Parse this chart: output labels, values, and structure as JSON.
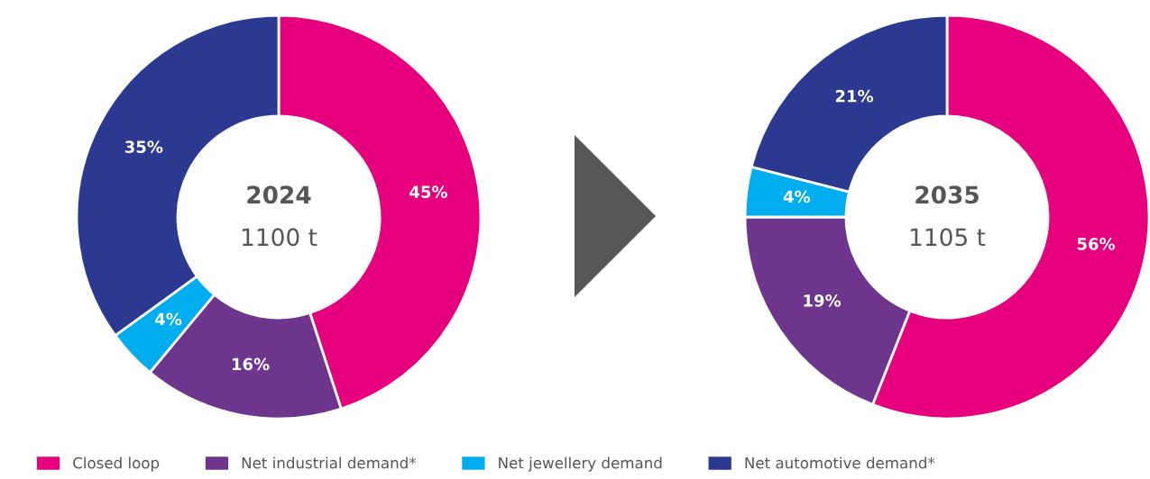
{
  "chart_data": [
    {
      "type": "donut",
      "title": "2024",
      "subtitle": "1100 t",
      "categories": [
        "Closed loop",
        "Net industrial demand*",
        "Net jewellery demand",
        "Net automotive demand*"
      ],
      "values": [
        45,
        16,
        4,
        35
      ],
      "colors": [
        "#e6007e",
        "#6d358b",
        "#00aeef",
        "#2b3990"
      ],
      "value_labels": [
        "45%",
        "16%",
        "4%",
        "35%"
      ],
      "legend": "bottom"
    },
    {
      "type": "donut",
      "title": "2035",
      "subtitle": "1105 t",
      "categories": [
        null,
        null,
        null,
        null
      ],
      "values": [
        56,
        19,
        4,
        21
      ],
      "colors": [
        "#e6007e",
        "#6d358b",
        "#00aeef",
        "#2b3990"
      ],
      "value_labels": [
        "56%",
        "19%",
        "4%",
        "21%"
      ]
    }
  ]
}
